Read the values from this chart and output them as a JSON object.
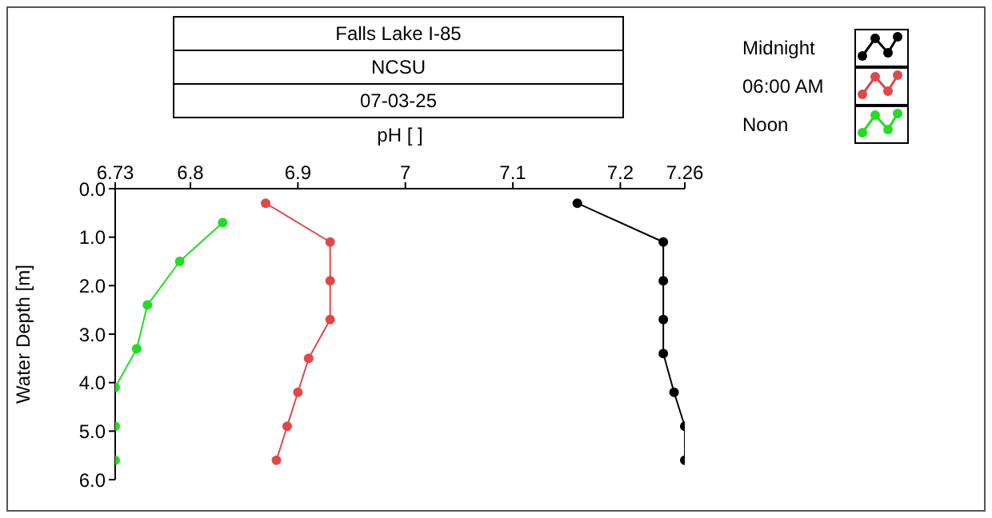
{
  "chart_data": {
    "type": "line",
    "title": "Falls Lake I-85",
    "subtitle": "NCSU",
    "annotations": [
      "07-03-25"
    ],
    "xlabel": "pH [ ]",
    "ylabel": "Water Depth [m]",
    "xlim": [
      6.73,
      7.26
    ],
    "xticks": [
      6.73,
      6.8,
      6.9,
      7,
      7.1,
      7.2,
      7.26
    ],
    "ylim": [
      6,
      0
    ],
    "yticks": [
      {
        "value": 0,
        "label": "0.0"
      },
      {
        "value": 1,
        "label": "1.0"
      },
      {
        "value": 2,
        "label": "2.0"
      },
      {
        "value": 3,
        "label": "3.0"
      },
      {
        "value": 4,
        "label": "4.0"
      },
      {
        "value": 5,
        "label": "5.0"
      },
      {
        "value": 6,
        "label": "6.0"
      }
    ],
    "grid": false,
    "legend": "top right",
    "marker": "circle",
    "line_style": "solid",
    "series": [
      {
        "name": "Midnight",
        "color": "#000000",
        "x": [
          7.16,
          7.24,
          7.24,
          7.24,
          7.24,
          7.25,
          7.26,
          7.26
        ],
        "values": [
          0.3,
          1.1,
          1.9,
          2.7,
          3.4,
          4.2,
          4.9,
          5.6
        ]
      },
      {
        "name": "06:00 AM",
        "color": "#e04848",
        "x": [
          6.87,
          6.93,
          6.93,
          6.93,
          6.91,
          6.9,
          6.89,
          6.88
        ],
        "values": [
          0.3,
          1.1,
          1.9,
          2.7,
          3.5,
          4.2,
          4.9,
          5.6
        ]
      },
      {
        "name": "Noon",
        "color": "#22dd22",
        "x": [
          6.83,
          6.79,
          6.76,
          6.75,
          6.73,
          6.73,
          6.73
        ],
        "values": [
          0.7,
          1.5,
          2.4,
          3.3,
          4.1,
          4.9,
          5.6
        ]
      }
    ]
  }
}
